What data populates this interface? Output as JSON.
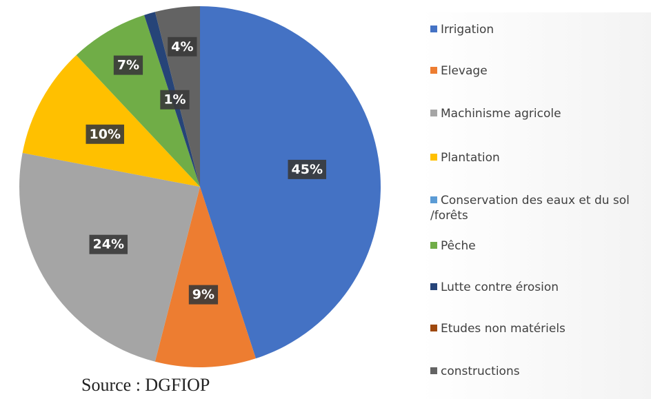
{
  "chart_data": {
    "type": "pie",
    "categories": [
      "Irrigation",
      "Elevage",
      "Machinisme agricole",
      "Plantation",
      "Conservation des eaux et du sol /forêts",
      "Pêche",
      "Lutte contre érosion",
      "Etudes non matériels",
      "constructions"
    ],
    "values": [
      45,
      9,
      24,
      10,
      0,
      7,
      1,
      0,
      4
    ],
    "value_labels": [
      "45%",
      "9%",
      "24%",
      "10%",
      null,
      "7%",
      "1%",
      null,
      "4%"
    ],
    "colors": [
      "#4472c4",
      "#ed7d31",
      "#a5a5a5",
      "#ffc000",
      "#5b9bd5",
      "#70ad47",
      "#264478",
      "#9e480e",
      "#636363"
    ],
    "source": "Source : DGFIOP",
    "legend": "right"
  }
}
